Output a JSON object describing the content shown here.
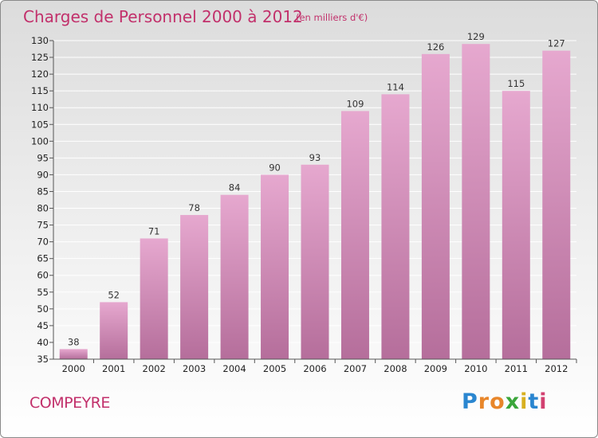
{
  "header": {
    "title": "Charges de Personnel 2000 à 2012",
    "subtitle": "(en milliers d'€)"
  },
  "footer": {
    "place": "COMPEYRE",
    "brand": "Proxiti",
    "brand_letters": [
      "P",
      "r",
      "o",
      "x",
      "i",
      "t",
      "i"
    ]
  },
  "colors": {
    "bar_top": "#e6a8cf",
    "bar_bottom": "#b56e9b",
    "accent": "#c2306b",
    "grid": "#ffffff"
  },
  "chart_data": {
    "type": "bar",
    "title": "Charges de Personnel 2000 à 2012",
    "subtitle": "(en milliers d'€)",
    "categories": [
      "2000",
      "2001",
      "2002",
      "2003",
      "2004",
      "2005",
      "2006",
      "2007",
      "2008",
      "2009",
      "2010",
      "2011",
      "2012"
    ],
    "values": [
      38,
      52,
      71,
      78,
      84,
      90,
      93,
      109,
      114,
      126,
      129,
      115,
      127
    ],
    "ylim": [
      35,
      130
    ],
    "ytick_step": 5,
    "grid": true,
    "legend": "none"
  }
}
